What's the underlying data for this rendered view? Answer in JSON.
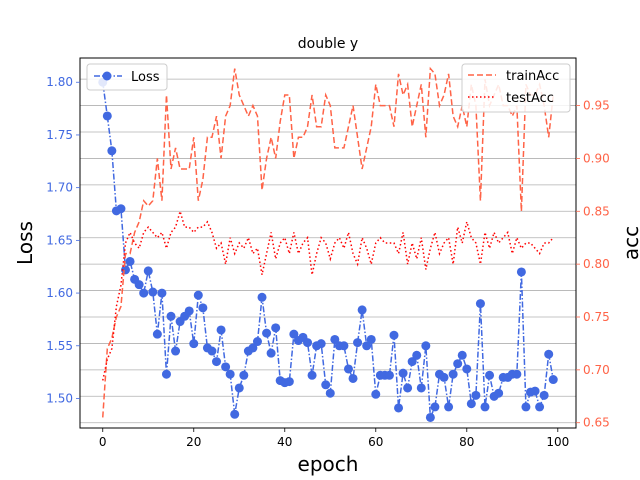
{
  "chart_data": {
    "type": "line",
    "title": "double y",
    "xlabel": "epoch",
    "ylabel_left": "Loss",
    "ylabel_right": "acc",
    "xlim": [
      -5,
      104
    ],
    "ylim_left": [
      1.472,
      1.823
    ],
    "ylim_right": [
      0.645,
      0.995
    ],
    "x_ticks": [
      "0",
      "20",
      "40",
      "60",
      "80",
      "100"
    ],
    "y_left_ticks": [
      "1.50",
      "1.55",
      "1.60",
      "1.65",
      "1.70",
      "1.75",
      "1.80"
    ],
    "y_right_ticks": [
      "0.65",
      "0.70",
      "0.75",
      "0.80",
      "0.85",
      "0.90",
      "0.95"
    ],
    "grid": "horizontal, right axis",
    "legend_left": {
      "position": "upper-left",
      "entries": [
        "Loss"
      ]
    },
    "legend_right": {
      "position": "upper-right",
      "entries": [
        "trainAcc",
        "testAcc"
      ]
    },
    "colors": {
      "loss": "#4169e1",
      "train": "#ff6347",
      "test": "#ff0000",
      "grid": "#b0b0b0"
    },
    "series": [
      {
        "name": "Loss",
        "axis": "left",
        "style": "dashdot-marker",
        "values": [
          1.8,
          1.768,
          1.735,
          1.678,
          1.68,
          1.622,
          1.63,
          1.613,
          1.608,
          1.6,
          1.621,
          1.601,
          1.561,
          1.6,
          1.523,
          1.578,
          1.545,
          1.573,
          1.578,
          1.583,
          1.552,
          1.598,
          1.586,
          1.548,
          1.545,
          1.535,
          1.565,
          1.53,
          1.523,
          1.485,
          1.51,
          1.522,
          1.545,
          1.548,
          1.554,
          1.596,
          1.562,
          1.543,
          1.567,
          1.517,
          1.515,
          1.516,
          1.561,
          1.555,
          1.558,
          1.553,
          1.522,
          1.55,
          1.552,
          1.513,
          1.505,
          1.556,
          1.55,
          1.55,
          1.528,
          1.519,
          1.553,
          1.584,
          1.55,
          1.556,
          1.504,
          1.522,
          1.522,
          1.522,
          1.56,
          1.491,
          1.524,
          1.51,
          1.535,
          1.541,
          1.51,
          1.55,
          1.482,
          1.492,
          1.523,
          1.52,
          1.492,
          1.523,
          1.533,
          1.541,
          1.528,
          1.495,
          1.503,
          1.59,
          1.492,
          1.522,
          1.502,
          1.505,
          1.52,
          1.52,
          1.523,
          1.523,
          1.62,
          1.492,
          1.506,
          1.507,
          1.492,
          1.503,
          1.542,
          1.518
        ]
      },
      {
        "name": "trainAcc",
        "axis": "right",
        "style": "dashed",
        "values": [
          0.655,
          0.72,
          0.73,
          0.75,
          0.76,
          0.81,
          0.81,
          0.83,
          0.84,
          0.86,
          0.855,
          0.86,
          0.9,
          0.86,
          0.96,
          0.89,
          0.91,
          0.89,
          0.89,
          0.89,
          0.92,
          0.86,
          0.88,
          0.92,
          0.92,
          0.94,
          0.9,
          0.94,
          0.95,
          0.985,
          0.96,
          0.95,
          0.94,
          0.95,
          0.94,
          0.87,
          0.9,
          0.92,
          0.9,
          0.935,
          0.96,
          0.96,
          0.9,
          0.92,
          0.92,
          0.93,
          0.96,
          0.93,
          0.93,
          0.96,
          0.95,
          0.91,
          0.91,
          0.91,
          0.93,
          0.95,
          0.92,
          0.89,
          0.91,
          0.93,
          0.97,
          0.95,
          0.95,
          0.95,
          0.93,
          0.98,
          0.96,
          0.97,
          0.93,
          0.95,
          0.97,
          0.92,
          0.985,
          0.98,
          0.95,
          0.96,
          0.98,
          0.94,
          0.93,
          0.95,
          0.93,
          0.97,
          0.95,
          0.86,
          0.975,
          0.95,
          0.96,
          0.97,
          0.95,
          0.95,
          0.94,
          0.95,
          0.85,
          0.97,
          0.96,
          0.96,
          0.97,
          0.95,
          0.92,
          0.96
        ]
      },
      {
        "name": "testAcc",
        "axis": "right",
        "style": "dotted",
        "values": [
          0.69,
          0.71,
          0.72,
          0.76,
          0.78,
          0.82,
          0.83,
          0.82,
          0.815,
          0.83,
          0.835,
          0.83,
          0.825,
          0.83,
          0.815,
          0.83,
          0.835,
          0.85,
          0.835,
          0.835,
          0.83,
          0.835,
          0.835,
          0.84,
          0.83,
          0.815,
          0.82,
          0.8,
          0.825,
          0.81,
          0.82,
          0.815,
          0.825,
          0.81,
          0.815,
          0.79,
          0.81,
          0.83,
          0.805,
          0.82,
          0.825,
          0.81,
          0.83,
          0.81,
          0.82,
          0.825,
          0.79,
          0.81,
          0.825,
          0.82,
          0.805,
          0.82,
          0.825,
          0.815,
          0.83,
          0.81,
          0.8,
          0.825,
          0.815,
          0.8,
          0.82,
          0.825,
          0.82,
          0.82,
          0.82,
          0.81,
          0.83,
          0.8,
          0.82,
          0.805,
          0.825,
          0.795,
          0.815,
          0.83,
          0.81,
          0.82,
          0.825,
          0.8,
          0.835,
          0.82,
          0.84,
          0.825,
          0.82,
          0.8,
          0.83,
          0.815,
          0.83,
          0.82,
          0.825,
          0.83,
          0.81,
          0.825,
          0.815,
          0.82,
          0.82,
          0.815,
          0.81,
          0.82,
          0.82,
          0.825
        ]
      }
    ]
  }
}
